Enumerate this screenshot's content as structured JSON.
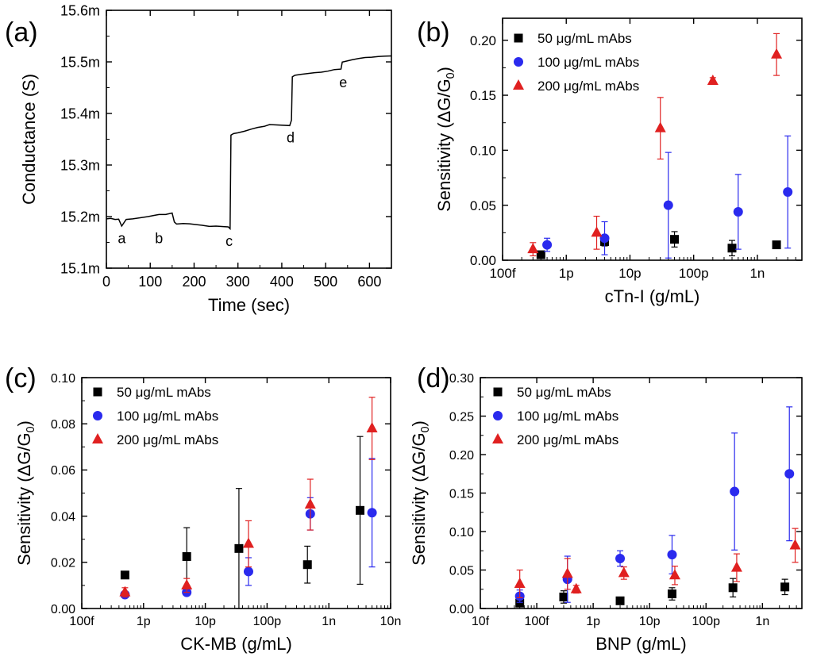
{
  "chart_data": [
    {
      "id": "a",
      "panel_label": "(a)",
      "type": "line",
      "title": "",
      "xlabel": "Time (sec)",
      "ylabel": "Conductance (S)",
      "xlim": [
        0,
        650
      ],
      "ylim": [
        0.0151,
        0.0156
      ],
      "x_ticks": [
        0,
        100,
        200,
        300,
        400,
        500,
        600
      ],
      "x_tick_labels": [
        "0",
        "100",
        "200",
        "300",
        "400",
        "500",
        "600"
      ],
      "y_ticks": [
        0.0151,
        0.0152,
        0.0153,
        0.0154,
        0.0155,
        0.0156
      ],
      "y_tick_labels": [
        "15.1m",
        "15.2m",
        "15.3m",
        "15.4m",
        "15.5m",
        "15.6m"
      ],
      "series": [
        {
          "name": "conductance",
          "color": "#000000",
          "x": [
            0,
            10,
            20,
            28,
            35,
            45,
            60,
            80,
            95,
            110,
            120,
            135,
            150,
            155,
            160,
            175,
            190,
            205,
            220,
            235,
            250,
            260,
            270,
            278,
            282,
            284,
            290,
            300,
            315,
            330,
            345,
            360,
            372,
            418,
            422,
            424,
            430,
            445,
            460,
            475,
            490,
            505,
            520,
            535,
            538,
            545,
            560,
            575,
            590,
            605,
            620,
            635,
            650
          ],
          "y": [
            0.0151955,
            0.0151965,
            0.0151945,
            0.015195,
            0.0151815,
            0.0151945,
            0.0151955,
            0.015198,
            0.0152,
            0.0152025,
            0.015204,
            0.015204,
            0.015207,
            0.0151895,
            0.0151855,
            0.0151865,
            0.015186,
            0.0151845,
            0.015183,
            0.015181,
            0.0151815,
            0.015181,
            0.0151805,
            0.01518,
            0.0151765,
            0.015358,
            0.015361,
            0.0153625,
            0.0153655,
            0.0153695,
            0.015373,
            0.015375,
            0.0153785,
            0.0153765,
            0.015387,
            0.015471,
            0.015474,
            0.015476,
            0.0154775,
            0.015479,
            0.01548,
            0.015482,
            0.015485,
            0.015486,
            0.0154995,
            0.015501,
            0.015504,
            0.0155065,
            0.0155085,
            0.015509,
            0.0155105,
            0.015511,
            0.0155115
          ]
        }
      ],
      "annotations": [
        {
          "text": "a",
          "x": 35,
          "y": 0.015182
        },
        {
          "text": "b",
          "x": 120,
          "y": 0.015182
        },
        {
          "text": "c",
          "x": 280,
          "y": 0.015177
        },
        {
          "text": "d",
          "x": 420,
          "y": 0.015378
        },
        {
          "text": "e",
          "x": 540,
          "y": 0.015485
        }
      ]
    },
    {
      "id": "b",
      "panel_label": "(b)",
      "type": "scatter",
      "title": "",
      "xscale": "log",
      "xlabel": "cTn-I (g/mL)",
      "ylabel": "Sensitivity (ΔG/G",
      "ylabel_sub": "0",
      "ylabel_tail": ")",
      "xlim": [
        1e-13,
        5e-09
      ],
      "ylim": [
        0,
        0.22
      ],
      "x_ticks": [
        1e-13,
        1e-12,
        1e-11,
        1e-10,
        1e-09
      ],
      "x_tick_labels": [
        "100f",
        "1p",
        "10p",
        "100p",
        "1n"
      ],
      "y_ticks": [
        0,
        0.05,
        0.1,
        0.15,
        0.2
      ],
      "y_tick_labels": [
        "0.00",
        "0.05",
        "0.10",
        "0.15",
        "0.20"
      ],
      "legend_position": "top-left",
      "series": [
        {
          "name": "50 μg/mL mAbs",
          "marker": "square",
          "color": "#000000",
          "x": [
            4e-13,
            4e-12,
            5e-11,
            4e-10,
            2e-09
          ],
          "y": [
            0.005,
            0.017,
            0.019,
            0.011,
            0.014
          ],
          "err": [
            0.002,
            0.004,
            0.007,
            0.007,
            0.002
          ]
        },
        {
          "name": "100 μg/mL mAbs",
          "marker": "circle",
          "color": "#2a2aee",
          "x": [
            5e-13,
            4e-12,
            4e-11,
            5e-10,
            3e-09
          ],
          "y": [
            0.014,
            0.02,
            0.05,
            0.044,
            0.062
          ],
          "err": [
            0.006,
            0.015,
            0.048,
            0.034,
            0.051
          ]
        },
        {
          "name": "200 μg/mL mAbs",
          "marker": "triangle",
          "color": "#e02020",
          "x": [
            3e-13,
            3e-12,
            3e-11,
            2e-10,
            2e-09
          ],
          "y": [
            0.01,
            0.025,
            0.12,
            0.163,
            0.187
          ],
          "err": [
            0.006,
            0.015,
            0.028,
            0.003,
            0.019
          ]
        }
      ]
    },
    {
      "id": "c",
      "panel_label": "(c)",
      "type": "scatter",
      "title": "",
      "xscale": "log",
      "xlabel": "CK-MB (g/mL)",
      "ylabel": "Sensitivity (ΔG/G",
      "ylabel_sub": "0",
      "ylabel_tail": ")",
      "xlim": [
        1e-13,
        1e-08
      ],
      "ylim": [
        0,
        0.1
      ],
      "x_ticks": [
        1e-13,
        1e-12,
        1e-11,
        1e-10,
        1e-09,
        1e-08
      ],
      "x_tick_labels": [
        "100f",
        "1p",
        "10p",
        "100p",
        "1n",
        "10n"
      ],
      "y_ticks": [
        0,
        0.02,
        0.04,
        0.06,
        0.08,
        0.1
      ],
      "y_tick_labels": [
        "0.00",
        "0.02",
        "0.04",
        "0.06",
        "0.08",
        "0.10"
      ],
      "legend_position": "top-left",
      "series": [
        {
          "name": "50 μg/mL mAbs",
          "marker": "square",
          "color": "#000000",
          "x": [
            5e-13,
            5e-12,
            3.5e-11,
            4.5e-10,
            3.2e-09
          ],
          "y": [
            0.0145,
            0.0225,
            0.026,
            0.019,
            0.0425
          ],
          "err": [
            0.001,
            0.0125,
            0.026,
            0.008,
            0.032
          ]
        },
        {
          "name": "100 μg/mL mAbs",
          "marker": "circle",
          "color": "#2a2aee",
          "x": [
            5e-13,
            5e-12,
            5e-11,
            5e-10,
            5e-09
          ],
          "y": [
            0.006,
            0.007,
            0.016,
            0.041,
            0.0415
          ],
          "err": [
            0.001,
            0.001,
            0.006,
            0.007,
            0.0235
          ]
        },
        {
          "name": "200 μg/mL mAbs",
          "marker": "triangle",
          "color": "#e02020",
          "x": [
            5e-13,
            5e-12,
            5e-11,
            5e-10,
            5e-09
          ],
          "y": [
            0.007,
            0.01,
            0.028,
            0.045,
            0.078
          ],
          "err": [
            0.002,
            0.003,
            0.01,
            0.011,
            0.0135
          ]
        }
      ]
    },
    {
      "id": "d",
      "panel_label": "(d)",
      "type": "scatter",
      "title": "",
      "xscale": "log",
      "xlabel": "BNP (g/mL)",
      "ylabel": "Sensitivity (ΔG/G",
      "ylabel_sub": "0",
      "ylabel_tail": ")",
      "xlim": [
        1e-14,
        5e-09
      ],
      "ylim": [
        0,
        0.3
      ],
      "x_ticks": [
        1e-14,
        1e-13,
        1e-12,
        1e-11,
        1e-10,
        1e-09
      ],
      "x_tick_labels": [
        "10f",
        "100f",
        "1p",
        "10p",
        "100p",
        "1n"
      ],
      "y_ticks": [
        0,
        0.05,
        0.1,
        0.15,
        0.2,
        0.25,
        0.3
      ],
      "y_tick_labels": [
        "0.00",
        "0.05",
        "0.10",
        "0.15",
        "0.20",
        "0.25",
        "0.30"
      ],
      "legend_position": "top-left",
      "series": [
        {
          "name": "50 μg/mL mAbs",
          "marker": "square",
          "color": "#000000",
          "x": [
            5e-14,
            3e-13,
            3e-12,
            2.5e-11,
            3e-10,
            2.5e-09
          ],
          "y": [
            0.007,
            0.015,
            0.01,
            0.019,
            0.027,
            0.028
          ],
          "err": [
            0.003,
            0.008,
            0.002,
            0.008,
            0.012,
            0.01
          ]
        },
        {
          "name": "100 μg/mL mAbs",
          "marker": "circle",
          "color": "#2a2aee",
          "x": [
            5e-14,
            3.5e-13,
            3e-12,
            2.5e-11,
            3.2e-10,
            3e-09
          ],
          "y": [
            0.016,
            0.038,
            0.065,
            0.07,
            0.152,
            0.175
          ],
          "err": [
            0.008,
            0.03,
            0.01,
            0.025,
            0.076,
            0.087
          ]
        },
        {
          "name": "200 μg/mL mAbs",
          "marker": "triangle",
          "color": "#e02020",
          "x": [
            5e-14,
            3.5e-13,
            5e-13,
            3.5e-12,
            2.8e-11,
            3.5e-10,
            3.8e-09
          ],
          "y": [
            0.032,
            0.045,
            0.025,
            0.046,
            0.043,
            0.053,
            0.082
          ],
          "err": [
            0.018,
            0.02,
            0.005,
            0.008,
            0.012,
            0.018,
            0.022
          ]
        }
      ]
    }
  ]
}
